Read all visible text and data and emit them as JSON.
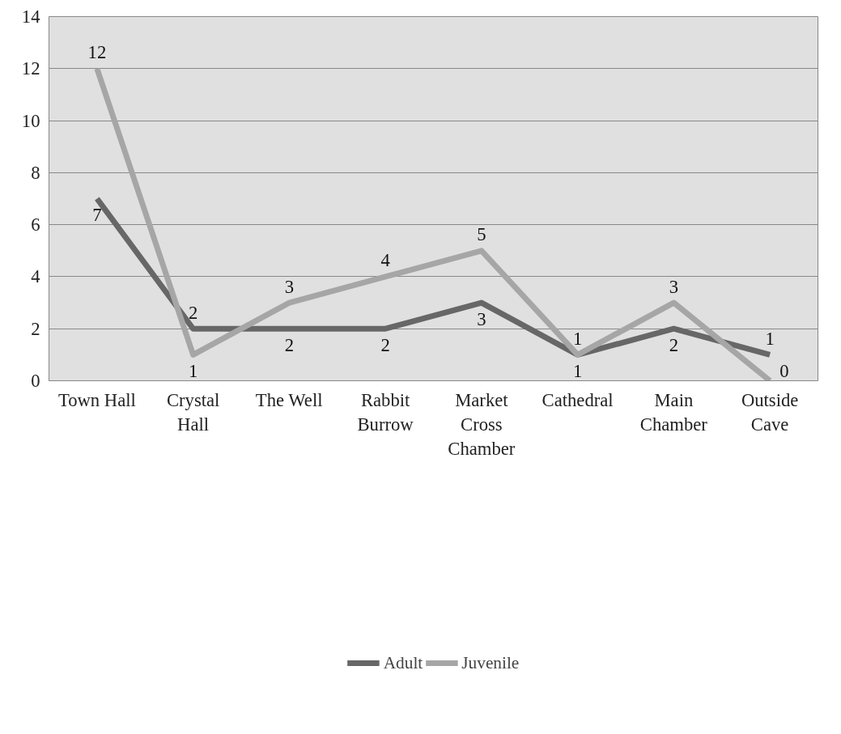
{
  "chart_data": {
    "type": "line",
    "categories": [
      "Town Hall",
      "Crystal Hall",
      "The Well",
      "Rabbit Burrow",
      "Market Cross Chamber",
      "Cathedral",
      "Main Chamber",
      "Outside Cave"
    ],
    "series": [
      {
        "name": "Adult",
        "color": "#676767",
        "values": [
          7,
          2,
          2,
          2,
          3,
          1,
          2,
          1
        ]
      },
      {
        "name": "Juvenile",
        "color": "#a6a6a6",
        "values": [
          12,
          1,
          3,
          4,
          5,
          1,
          3,
          0
        ]
      }
    ],
    "ylim": [
      0,
      14
    ],
    "yticks": [
      0,
      2,
      4,
      6,
      8,
      10,
      12,
      14
    ],
    "grid": "y",
    "legend": "bottom",
    "data_labels": true,
    "marker": "none",
    "line_style": "solid"
  }
}
